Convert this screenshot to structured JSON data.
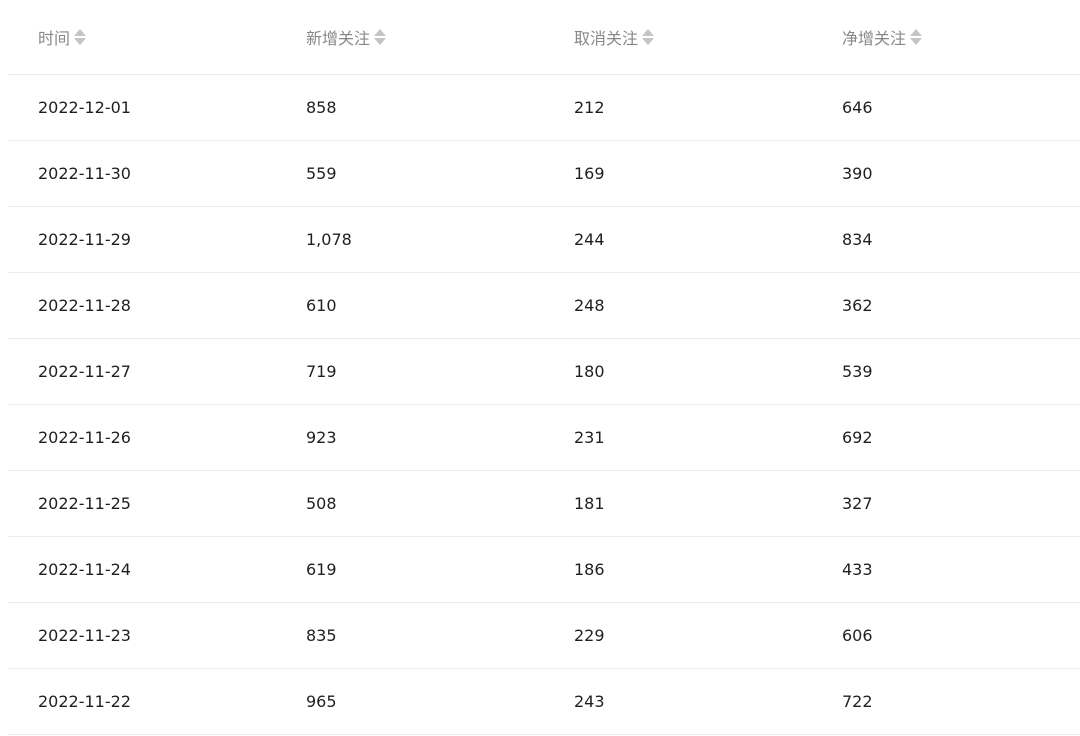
{
  "table": {
    "columns": [
      "时间",
      "新增关注",
      "取消关注",
      "净增关注"
    ],
    "rows": [
      [
        "2022-12-01",
        "858",
        "212",
        "646"
      ],
      [
        "2022-11-30",
        "559",
        "169",
        "390"
      ],
      [
        "2022-11-29",
        "1,078",
        "244",
        "834"
      ],
      [
        "2022-11-28",
        "610",
        "248",
        "362"
      ],
      [
        "2022-11-27",
        "719",
        "180",
        "539"
      ],
      [
        "2022-11-26",
        "923",
        "231",
        "692"
      ],
      [
        "2022-11-25",
        "508",
        "181",
        "327"
      ],
      [
        "2022-11-24",
        "619",
        "186",
        "433"
      ],
      [
        "2022-11-23",
        "835",
        "229",
        "606"
      ],
      [
        "2022-11-22",
        "965",
        "243",
        "722"
      ]
    ]
  }
}
